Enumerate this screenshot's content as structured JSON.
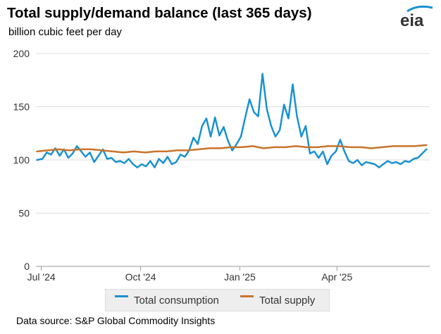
{
  "header": {
    "title": "Total supply/demand balance (last 365 days)",
    "subtitle": "billion cubic feet per day",
    "logo_text": "eia"
  },
  "footer": {
    "source": "Data source: S&P Global Commodity Insights"
  },
  "colors": {
    "consumption": "#1a92d1",
    "supply": "#c8742c",
    "grid": "#dddddd",
    "logo_arc": "#1a92d1"
  },
  "chart_data": {
    "type": "line",
    "title": "Total supply/demand balance (last 365 days)",
    "ylabel": "billion cubic feet per day",
    "xlabel": "",
    "ylim": [
      0,
      200
    ],
    "yticks": [
      0,
      50,
      100,
      150,
      200
    ],
    "xlim": [
      "2024-06-26",
      "2025-06-26"
    ],
    "xticks": [
      {
        "date": "2024-07-01",
        "label": "Jul '24"
      },
      {
        "date": "2024-10-01",
        "label": "Oct '24"
      },
      {
        "date": "2025-01-01",
        "label": "Jan '25"
      },
      {
        "date": "2025-04-01",
        "label": "Apr '25"
      }
    ],
    "grid": "horizontal",
    "legend": "bottom",
    "series": [
      {
        "name": "Total consumption",
        "color": "#1a92d1",
        "points": [
          [
            "2024-06-27",
            100
          ],
          [
            "2024-07-02",
            101
          ],
          [
            "2024-07-06",
            107
          ],
          [
            "2024-07-10",
            105
          ],
          [
            "2024-07-14",
            111
          ],
          [
            "2024-07-18",
            104
          ],
          [
            "2024-07-22",
            110
          ],
          [
            "2024-07-26",
            102
          ],
          [
            "2024-07-30",
            106
          ],
          [
            "2024-08-03",
            113
          ],
          [
            "2024-08-07",
            108
          ],
          [
            "2024-08-11",
            103
          ],
          [
            "2024-08-15",
            107
          ],
          [
            "2024-08-19",
            98
          ],
          [
            "2024-08-23",
            104
          ],
          [
            "2024-08-27",
            110
          ],
          [
            "2024-08-31",
            101
          ],
          [
            "2024-09-04",
            102
          ],
          [
            "2024-09-08",
            98
          ],
          [
            "2024-09-12",
            99
          ],
          [
            "2024-09-16",
            97
          ],
          [
            "2024-09-20",
            101
          ],
          [
            "2024-09-24",
            96
          ],
          [
            "2024-09-28",
            93
          ],
          [
            "2024-10-02",
            96
          ],
          [
            "2024-10-06",
            94
          ],
          [
            "2024-10-10",
            99
          ],
          [
            "2024-10-14",
            93
          ],
          [
            "2024-10-18",
            101
          ],
          [
            "2024-10-22",
            97
          ],
          [
            "2024-10-26",
            103
          ],
          [
            "2024-10-30",
            96
          ],
          [
            "2024-11-03",
            98
          ],
          [
            "2024-11-07",
            105
          ],
          [
            "2024-11-11",
            103
          ],
          [
            "2024-11-15",
            109
          ],
          [
            "2024-11-19",
            121
          ],
          [
            "2024-11-23",
            115
          ],
          [
            "2024-11-27",
            132
          ],
          [
            "2024-12-01",
            139
          ],
          [
            "2024-12-05",
            122
          ],
          [
            "2024-12-09",
            140
          ],
          [
            "2024-12-13",
            123
          ],
          [
            "2024-12-17",
            131
          ],
          [
            "2024-12-21",
            118
          ],
          [
            "2024-12-25",
            109
          ],
          [
            "2024-12-29",
            115
          ],
          [
            "2025-01-02",
            122
          ],
          [
            "2025-01-06",
            140
          ],
          [
            "2025-01-10",
            157
          ],
          [
            "2025-01-14",
            145
          ],
          [
            "2025-01-18",
            141
          ],
          [
            "2025-01-22",
            181
          ],
          [
            "2025-01-26",
            148
          ],
          [
            "2025-01-30",
            132
          ],
          [
            "2025-02-03",
            122
          ],
          [
            "2025-02-07",
            128
          ],
          [
            "2025-02-11",
            152
          ],
          [
            "2025-02-15",
            139
          ],
          [
            "2025-02-19",
            171
          ],
          [
            "2025-02-23",
            141
          ],
          [
            "2025-02-27",
            122
          ],
          [
            "2025-03-03",
            132
          ],
          [
            "2025-03-07",
            106
          ],
          [
            "2025-03-11",
            108
          ],
          [
            "2025-03-15",
            102
          ],
          [
            "2025-03-19",
            108
          ],
          [
            "2025-03-23",
            96
          ],
          [
            "2025-03-27",
            104
          ],
          [
            "2025-03-31",
            108
          ],
          [
            "2025-04-04",
            119
          ],
          [
            "2025-04-08",
            108
          ],
          [
            "2025-04-12",
            99
          ],
          [
            "2025-04-16",
            97
          ],
          [
            "2025-04-20",
            100
          ],
          [
            "2025-04-24",
            95
          ],
          [
            "2025-04-28",
            98
          ],
          [
            "2025-05-02",
            97
          ],
          [
            "2025-05-06",
            96
          ],
          [
            "2025-05-10",
            93
          ],
          [
            "2025-05-14",
            96
          ],
          [
            "2025-05-18",
            99
          ],
          [
            "2025-05-22",
            97
          ],
          [
            "2025-05-26",
            98
          ],
          [
            "2025-05-30",
            96
          ],
          [
            "2025-06-03",
            99
          ],
          [
            "2025-06-07",
            98
          ],
          [
            "2025-06-11",
            101
          ],
          [
            "2025-06-15",
            102
          ],
          [
            "2025-06-19",
            106
          ],
          [
            "2025-06-23",
            110
          ]
        ]
      },
      {
        "name": "Total supply",
        "color": "#c8742c",
        "points": [
          [
            "2024-06-27",
            108
          ],
          [
            "2024-07-07",
            109
          ],
          [
            "2024-07-17",
            110
          ],
          [
            "2024-07-27",
            109
          ],
          [
            "2024-08-06",
            110
          ],
          [
            "2024-08-16",
            110
          ],
          [
            "2024-08-26",
            109
          ],
          [
            "2024-09-05",
            108
          ],
          [
            "2024-09-15",
            107
          ],
          [
            "2024-09-25",
            108
          ],
          [
            "2024-10-05",
            107
          ],
          [
            "2024-10-15",
            108
          ],
          [
            "2024-10-25",
            108
          ],
          [
            "2024-11-04",
            109
          ],
          [
            "2024-11-14",
            109
          ],
          [
            "2024-11-24",
            110
          ],
          [
            "2024-12-04",
            111
          ],
          [
            "2024-12-14",
            111
          ],
          [
            "2024-12-24",
            112
          ],
          [
            "2025-01-03",
            112
          ],
          [
            "2025-01-13",
            113
          ],
          [
            "2025-01-23",
            111
          ],
          [
            "2025-02-02",
            112
          ],
          [
            "2025-02-12",
            112
          ],
          [
            "2025-02-22",
            113
          ],
          [
            "2025-03-04",
            112
          ],
          [
            "2025-03-14",
            112
          ],
          [
            "2025-03-24",
            113
          ],
          [
            "2025-04-03",
            113
          ],
          [
            "2025-04-13",
            112
          ],
          [
            "2025-04-23",
            112
          ],
          [
            "2025-05-03",
            111
          ],
          [
            "2025-05-13",
            112
          ],
          [
            "2025-05-23",
            113
          ],
          [
            "2025-06-02",
            113
          ],
          [
            "2025-06-12",
            113
          ],
          [
            "2025-06-23",
            114
          ]
        ]
      }
    ]
  }
}
